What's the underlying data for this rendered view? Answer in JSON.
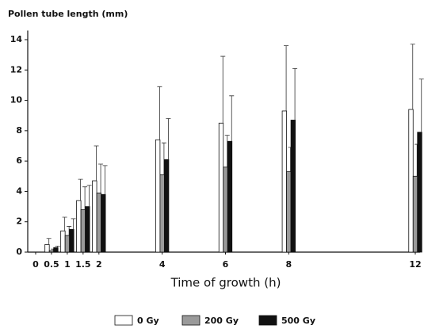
{
  "chart_data": {
    "type": "bar",
    "y_label": "Pollen tube length (mm)",
    "x_label": "Time of growth (h)",
    "x": [
      0.5,
      1,
      1.5,
      2,
      4,
      6,
      8,
      12
    ],
    "series": [
      {
        "name": "0 Gy",
        "color": "#ffffff",
        "values": [
          0.5,
          1.4,
          3.4,
          4.7,
          7.4,
          8.5,
          9.3,
          9.4
        ],
        "errors": [
          0.4,
          0.9,
          1.4,
          2.3,
          3.5,
          4.4,
          4.3,
          4.3
        ]
      },
      {
        "name": "200 Gy",
        "color": "#9a9a9a",
        "values": [
          0.1,
          1.1,
          2.8,
          3.9,
          5.1,
          5.6,
          5.3,
          5.0
        ],
        "errors": [
          0.1,
          0.6,
          1.5,
          1.9,
          2.1,
          2.1,
          1.6,
          2.1
        ]
      },
      {
        "name": "500 Gy",
        "color": "#111111",
        "values": [
          0.3,
          1.5,
          3.0,
          3.8,
          6.1,
          7.3,
          8.7,
          7.9
        ],
        "errors": [
          0.1,
          0.7,
          1.4,
          1.9,
          2.7,
          3.0,
          3.4,
          3.5
        ]
      }
    ],
    "xlim": [
      -0.25,
      12.15
    ],
    "xticks": [
      0,
      0.5,
      1,
      1.5,
      2,
      4,
      6,
      8,
      12
    ],
    "ylim": [
      0,
      14.6
    ],
    "yticks": [
      0,
      2,
      4,
      6,
      8,
      10,
      12,
      14
    ],
    "legend": "bottom"
  }
}
